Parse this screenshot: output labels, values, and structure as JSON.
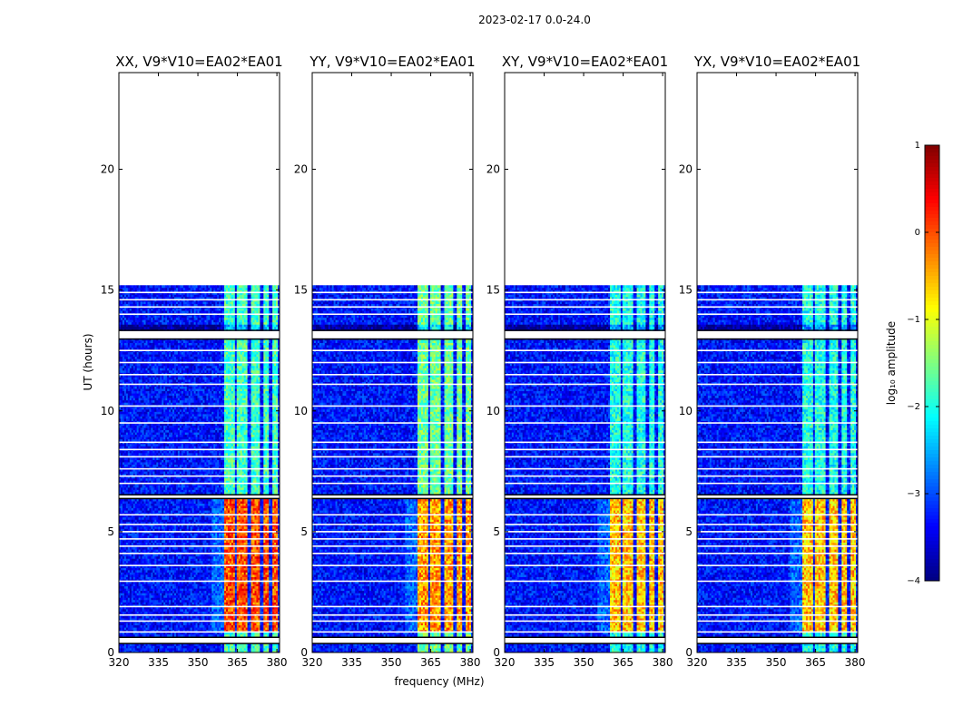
{
  "chart_data": {
    "type": "heatmap",
    "suptitle": "2023-02-17 0.0-24.0",
    "xlabel": "frequency (MHz)",
    "ylabel": "UT (hours)",
    "xlim": [
      320,
      381
    ],
    "ylim": [
      0,
      24
    ],
    "xticks": [
      320,
      335,
      350,
      365,
      380
    ],
    "yticks": [
      0,
      5,
      10,
      15,
      20
    ],
    "colorbar": {
      "label": "log₁₀ amplitude",
      "range": [
        -4,
        1
      ],
      "ticks": [
        "1",
        "0",
        "−1",
        "−2",
        "−3",
        "−4"
      ],
      "colormap": "jet"
    },
    "data_time_range": [
      0.0,
      15.2
    ],
    "blank_time_bands": [
      [
        0.4,
        0.6
      ],
      [
        13.0,
        13.3
      ],
      [
        6.4,
        6.5
      ]
    ],
    "flagged_time_lines": [
      0.85,
      1.3,
      1.55,
      1.9,
      2.95,
      3.6,
      4.1,
      4.4,
      4.7,
      5.0,
      5.3,
      5.7,
      7.0,
      7.3,
      7.6,
      8.1,
      8.4,
      8.7,
      9.5,
      10.2,
      11.1,
      11.5,
      12.0,
      12.5,
      14.0,
      14.3,
      14.6,
      14.9
    ],
    "rfi_bands_mhz": [
      [
        360,
        364
      ],
      [
        365,
        369
      ],
      [
        370,
        373.5
      ],
      [
        375,
        377
      ],
      [
        378,
        380
      ]
    ],
    "strong_rfi_time_range": [
      0.85,
      6.4
    ],
    "panels": [
      {
        "title": "XX, V9*V10=EA02*EA01",
        "strong_level": 0.0,
        "mid_level": -1.8,
        "show_xlabel": false
      },
      {
        "title": "YY, V9*V10=EA02*EA01",
        "strong_level": -0.4,
        "mid_level": -1.6,
        "show_xlabel": true
      },
      {
        "title": "XY, V9*V10=EA02*EA01",
        "strong_level": -0.6,
        "mid_level": -2.0,
        "show_xlabel": false
      },
      {
        "title": "YX, V9*V10=EA02*EA01",
        "strong_level": -0.6,
        "mid_level": -2.0,
        "show_xlabel": false
      }
    ]
  }
}
